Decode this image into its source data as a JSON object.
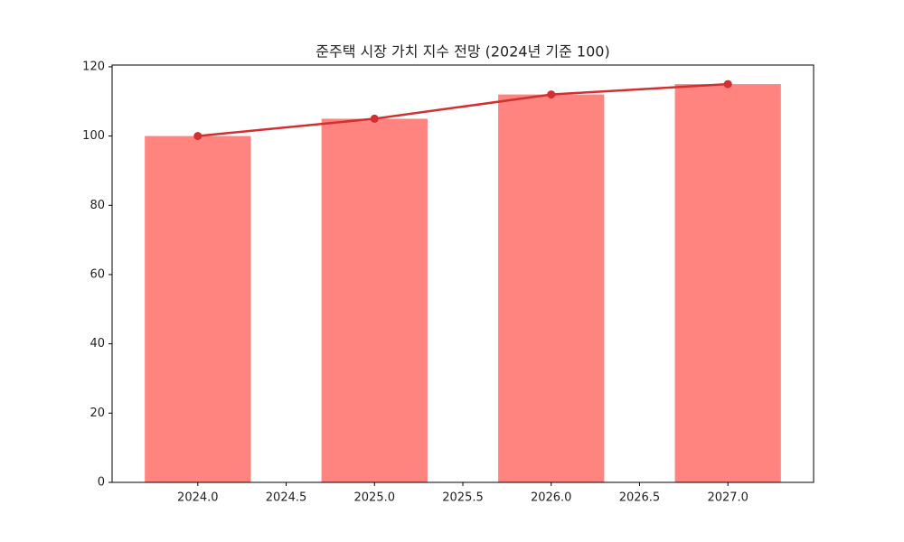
{
  "chart_data": {
    "type": "bar",
    "title": "준주택 시장 가치 지수 전망 (2024년 기준 100)",
    "x": [
      2024,
      2025,
      2026,
      2027
    ],
    "series": [
      {
        "type": "bar",
        "color": "#ff8480",
        "values": [
          100,
          105,
          112,
          115
        ]
      },
      {
        "type": "line",
        "color": "#d32f2f",
        "values": [
          100,
          105,
          112,
          115
        ]
      }
    ],
    "xlim": [
      2023.515,
      2027.485
    ],
    "xticks": [
      {
        "value": 2024,
        "label": "2024.0"
      },
      {
        "value": 2024.5,
        "label": "2024.5"
      },
      {
        "value": 2025,
        "label": "2025.0"
      },
      {
        "value": 2025.5,
        "label": "2025.5"
      },
      {
        "value": 2026,
        "label": "2026.0"
      },
      {
        "value": 2026.5,
        "label": "2026.5"
      },
      {
        "value": 2027,
        "label": "2027.0"
      }
    ],
    "ylim": [
      0,
      120.5
    ],
    "yticks": [
      0,
      20,
      40,
      60,
      80,
      100,
      120
    ],
    "grid": false
  }
}
